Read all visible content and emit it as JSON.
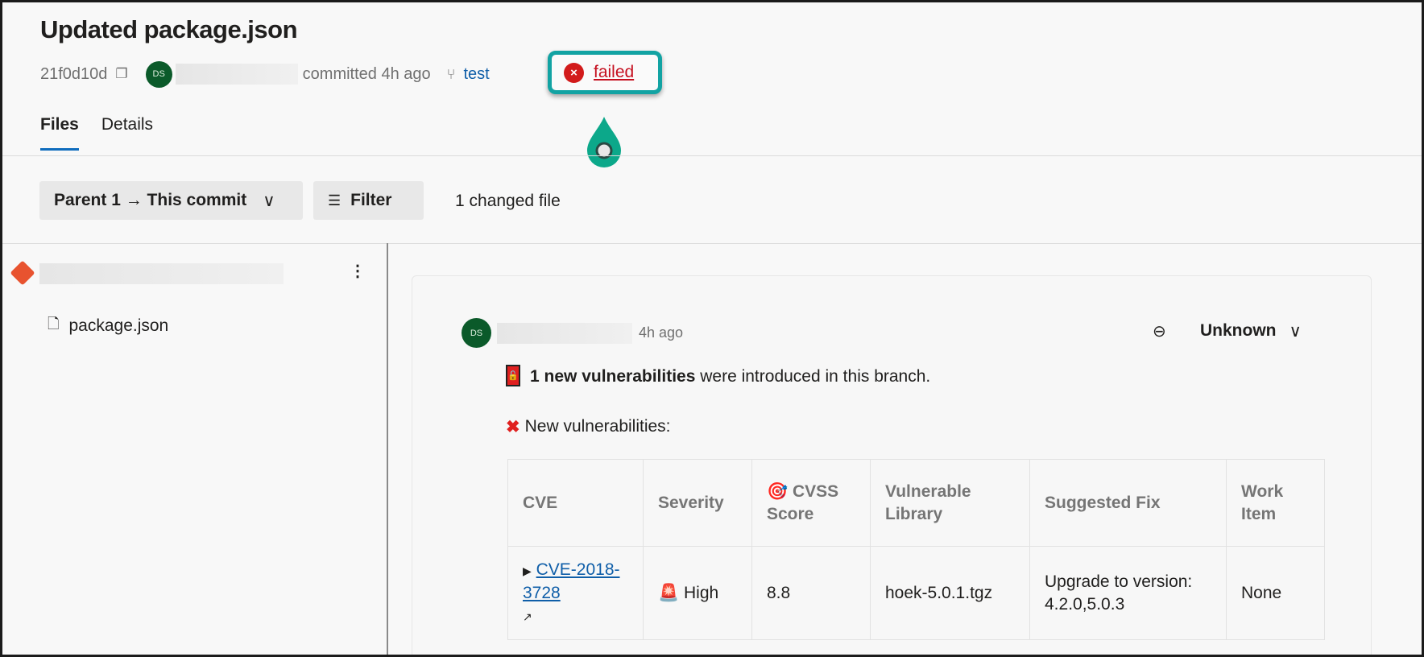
{
  "header": {
    "title": "Updated package.json",
    "commit_hash": "21f0d10d",
    "author_initials": "DS",
    "committed_text": "committed 4h ago",
    "branch": "test",
    "status": "failed"
  },
  "tabs": [
    {
      "label": "Files",
      "active": true
    },
    {
      "label": "Details",
      "active": false
    }
  ],
  "toolbar": {
    "compare_label": "Parent 1 → This commit",
    "filter_label": "Filter",
    "changed_files": "1 changed file"
  },
  "file_tree": {
    "files": [
      "package.json"
    ]
  },
  "comment": {
    "author_initials": "DS",
    "time": "4h ago",
    "status_dropdown": "Unknown",
    "summary_bold": "1 new vulnerabilities",
    "summary_rest": " were introduced in this branch.",
    "list_heading": "New vulnerabilities:",
    "table": {
      "headers": [
        "CVE",
        "Severity",
        "CVSS Score",
        "Vulnerable Library",
        "Suggested Fix",
        "Work Item"
      ],
      "rows": [
        {
          "cve": "CVE-2018-3728",
          "severity": "High",
          "score": "8.8",
          "library": "hoek-5.0.1.tgz",
          "fix": "Upgrade to version: 4.2.0,5.0.3",
          "work_item": "None"
        }
      ]
    }
  },
  "colors": {
    "accent": "#0f6cbd",
    "failed": "#c50f1f",
    "highlight": "#12a3a3"
  }
}
